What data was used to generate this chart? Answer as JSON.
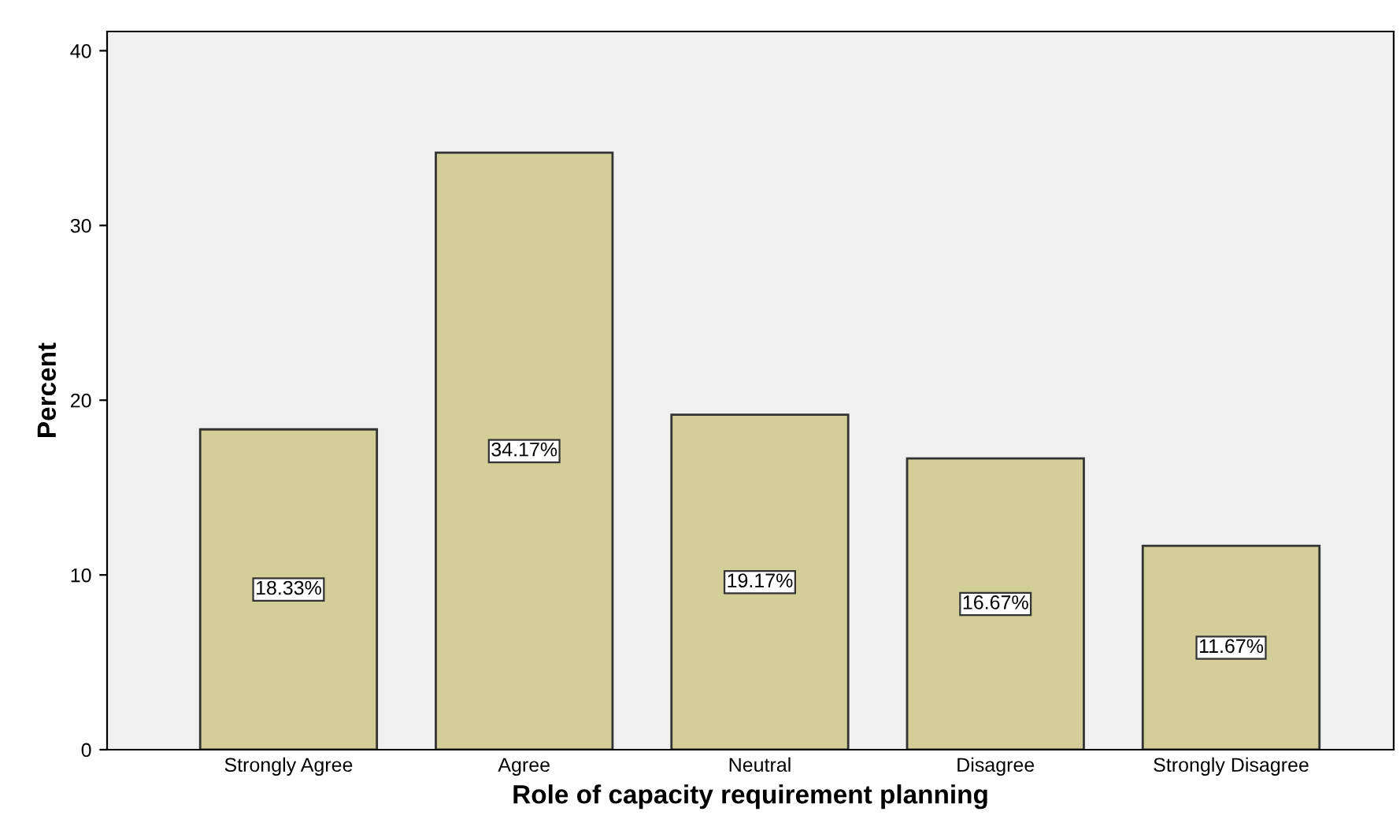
{
  "chart_data": {
    "type": "bar",
    "xlabel": "Role of capacity requirement planning",
    "ylabel": "Percent",
    "categories": [
      "Strongly Agree",
      "Agree",
      "Neutral",
      "Disagree",
      "Strongly Disagree"
    ],
    "values": [
      18.33,
      34.17,
      19.17,
      16.67,
      11.67
    ],
    "value_labels": [
      "18.33%",
      "34.17%",
      "19.17%",
      "16.67%",
      "11.67%"
    ],
    "color": "#d3ce97",
    "ylim": [
      0,
      41.1
    ],
    "yticks": [
      0,
      10,
      20,
      30,
      40
    ],
    "grid": false,
    "legend": false
  }
}
